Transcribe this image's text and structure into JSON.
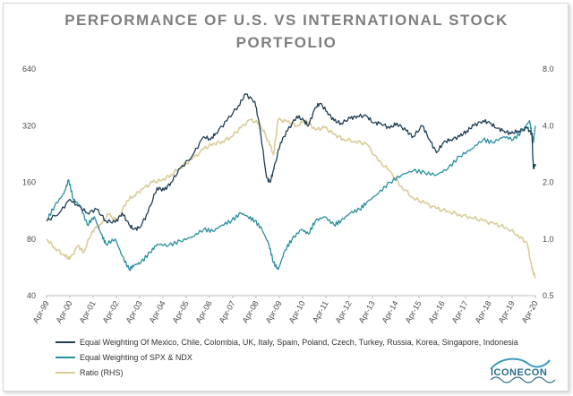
{
  "chart_data": {
    "type": "line",
    "title": "PERFORMANCE OF U.S. VS INTERNATIONAL STOCK PORTFOLIO",
    "xlabel": "",
    "ylabel": "",
    "x_tick_labels": [
      "Apr-99",
      "Apr-00",
      "Apr-01",
      "Apr-02",
      "Apr-03",
      "Apr-04",
      "Apr-05",
      "Apr-06",
      "Apr-07",
      "Apr-08",
      "Apr-09",
      "Apr-10",
      "Apr-11",
      "Apr-12",
      "Apr-13",
      "Apr-14",
      "Apr-15",
      "Apr-16",
      "Apr-17",
      "Apr-18",
      "Apr-19",
      "Apr-20"
    ],
    "xlim": [
      1999.25,
      2020.25
    ],
    "y_left": {
      "scale": "log2",
      "range": [
        40,
        640
      ],
      "ticks": [
        "40",
        "80",
        "160",
        "320",
        "640"
      ]
    },
    "y_right": {
      "scale": "linear",
      "range": [
        0.5,
        8.0
      ],
      "ticks": [
        "0.5",
        "1.0",
        "2.0",
        "4.0",
        "8.0"
      ]
    },
    "grid": false,
    "legend_position": "bottom",
    "series": [
      {
        "name": "Equal Weighting Of Mexico, Chile, Colombia, UK, Italy, Spain, Poland, Czech, Turkey, Russia, Korea, Singapore, Indonesia",
        "axis": "left",
        "color": "#1f3f55",
        "x": [
          1999.25,
          1999.8,
          2000.25,
          2000.6,
          2001.0,
          2001.4,
          2001.8,
          2002.2,
          2002.5,
          2002.8,
          2003.0,
          2003.25,
          2003.6,
          2004.0,
          2004.3,
          2004.6,
          2005.0,
          2005.5,
          2006.0,
          2006.3,
          2006.5,
          2007.0,
          2007.5,
          2007.8,
          2008.2,
          2008.4,
          2008.7,
          2008.85,
          2009.0,
          2009.3,
          2009.6,
          2010.0,
          2010.3,
          2010.5,
          2010.8,
          2011.0,
          2011.3,
          2011.6,
          2011.9,
          2012.3,
          2012.6,
          2013.0,
          2013.3,
          2013.6,
          2014.0,
          2014.3,
          2014.7,
          2015.0,
          2015.4,
          2015.7,
          2016.0,
          2016.3,
          2016.6,
          2017.0,
          2017.3,
          2017.6,
          2018.0,
          2018.3,
          2018.6,
          2018.9,
          2019.2,
          2019.5,
          2019.9,
          2020.1,
          2020.16,
          2020.25
        ],
        "y": [
          100,
          110,
          130,
          120,
          110,
          115,
          100,
          98,
          110,
          95,
          90,
          92,
          110,
          150,
          145,
          160,
          190,
          220,
          280,
          270,
          290,
          340,
          410,
          470,
          430,
          320,
          170,
          160,
          185,
          260,
          300,
          360,
          340,
          320,
          400,
          420,
          380,
          340,
          330,
          350,
          360,
          360,
          330,
          330,
          310,
          330,
          300,
          280,
          320,
          270,
          230,
          260,
          270,
          280,
          300,
          320,
          340,
          330,
          310,
          300,
          290,
          300,
          310,
          290,
          190,
          200
        ]
      },
      {
        "name": "Equal Weighting of SPX & NDX",
        "axis": "left",
        "color": "#2a8fa0",
        "x": [
          1999.25,
          1999.6,
          2000.0,
          2000.2,
          2000.4,
          2000.7,
          2001.0,
          2001.3,
          2001.6,
          2001.8,
          2002.2,
          2002.5,
          2002.8,
          2003.0,
          2003.3,
          2003.7,
          2004.0,
          2004.5,
          2005.0,
          2005.5,
          2006.0,
          2006.4,
          2006.8,
          2007.2,
          2007.6,
          2007.9,
          2008.2,
          2008.5,
          2008.8,
          2009.0,
          2009.2,
          2009.5,
          2009.8,
          2010.2,
          2010.5,
          2010.8,
          2011.2,
          2011.6,
          2011.9,
          2012.3,
          2012.7,
          2013.0,
          2013.5,
          2014.0,
          2014.5,
          2015.0,
          2015.5,
          2016.0,
          2016.5,
          2017.0,
          2017.5,
          2018.0,
          2018.4,
          2018.9,
          2019.3,
          2019.7,
          2020.0,
          2020.1,
          2020.16,
          2020.25
        ],
        "y": [
          100,
          120,
          140,
          165,
          130,
          120,
          95,
          105,
          85,
          75,
          80,
          65,
          55,
          58,
          60,
          68,
          75,
          74,
          78,
          82,
          90,
          88,
          95,
          100,
          110,
          105,
          100,
          90,
          75,
          60,
          55,
          70,
          80,
          90,
          85,
          100,
          105,
          95,
          100,
          110,
          115,
          125,
          140,
          160,
          175,
          185,
          180,
          175,
          190,
          220,
          240,
          270,
          260,
          280,
          270,
          300,
          340,
          290,
          260,
          320
        ]
      },
      {
        "name": "Ratio (RHS)",
        "axis": "right",
        "color": "#d9cc97",
        "x": [
          1999.25,
          1999.6,
          2000.0,
          2000.25,
          2000.6,
          2000.85,
          2001.2,
          2001.6,
          2001.9,
          2002.3,
          2002.7,
          2003.0,
          2003.4,
          2003.8,
          2004.2,
          2004.6,
          2005.0,
          2005.5,
          2006.0,
          2006.4,
          2006.8,
          2007.2,
          2007.6,
          2008.0,
          2008.4,
          2008.8,
          2009.0,
          2009.2,
          2009.6,
          2010.0,
          2010.4,
          2010.8,
          2011.2,
          2011.6,
          2012.0,
          2012.5,
          2013.0,
          2013.5,
          2014.0,
          2014.5,
          2015.0,
          2015.5,
          2016.0,
          2016.5,
          2017.0,
          2017.5,
          2018.0,
          2018.5,
          2019.0,
          2019.5,
          2019.9,
          2020.1,
          2020.25
        ],
        "y": [
          1.0,
          0.9,
          0.82,
          0.78,
          0.92,
          0.85,
          1.1,
          1.2,
          1.35,
          1.25,
          1.6,
          1.7,
          1.85,
          2.0,
          2.05,
          2.2,
          2.4,
          2.65,
          3.0,
          3.2,
          3.3,
          3.5,
          3.9,
          4.3,
          4.1,
          3.3,
          2.8,
          4.3,
          4.2,
          4.0,
          4.3,
          3.8,
          3.9,
          3.6,
          3.4,
          3.3,
          3.2,
          2.6,
          2.3,
          1.9,
          1.65,
          1.55,
          1.45,
          1.4,
          1.35,
          1.3,
          1.25,
          1.2,
          1.15,
          1.05,
          0.95,
          0.7,
          0.62
        ]
      }
    ],
    "legend": [
      "Equal Weighting Of Mexico, Chile, Colombia, UK, Italy, Spain, Poland, Czech, Turkey, Russia, Korea, Singapore, Indonesia",
      "Equal Weighting of SPX & NDX",
      "Ratio (RHS)"
    ]
  },
  "logo": {
    "text": "ICONECON"
  }
}
